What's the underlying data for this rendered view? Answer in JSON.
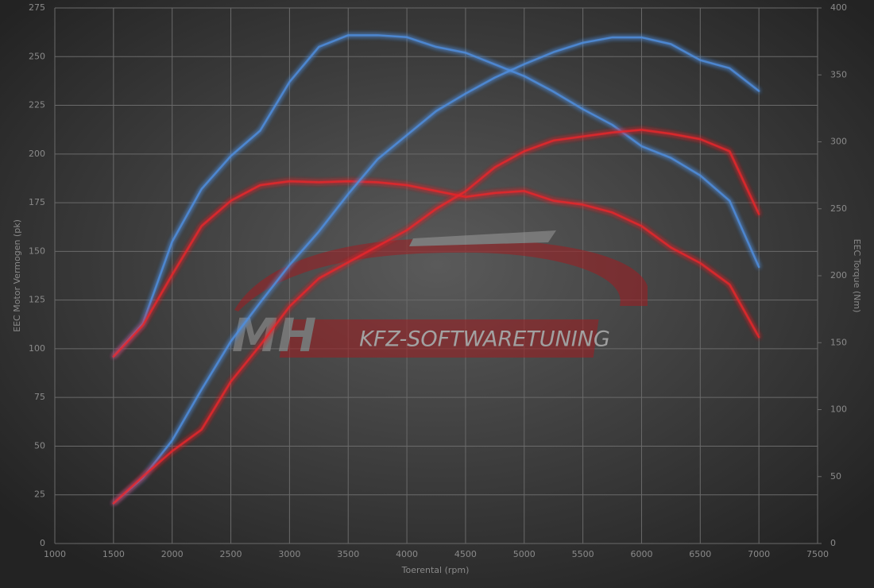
{
  "chart_data": {
    "type": "line",
    "x_label": "Toerental (rpm)",
    "y_label": "EEC Motor Vermogen (pk)",
    "y2_label": "EEC Torque (Nm)",
    "watermark": {
      "initials": "MH",
      "text": "KFZ-SOFTWARETUNING"
    },
    "x": [
      1500,
      1750,
      2000,
      2250,
      2500,
      2750,
      3000,
      3250,
      3500,
      3750,
      4000,
      4250,
      4500,
      4750,
      5000,
      5250,
      5500,
      5750,
      6000,
      6250,
      6500,
      6750,
      7000
    ],
    "xlim": [
      1000,
      7500
    ],
    "xticks": [
      1000,
      1500,
      2000,
      2500,
      3000,
      3500,
      4000,
      4500,
      5000,
      5500,
      6000,
      6500,
      7000,
      7500
    ],
    "ylim": [
      0,
      275
    ],
    "yticks": [
      0,
      25,
      50,
      75,
      100,
      125,
      150,
      175,
      200,
      225,
      250,
      275
    ],
    "y2lim": [
      0,
      400
    ],
    "y2ticks": [
      0,
      50,
      100,
      150,
      200,
      250,
      300,
      350,
      400
    ],
    "grid": true,
    "series": [
      {
        "color": "#4f8fe0",
        "values": [
          96,
          113,
          155,
          182,
          199,
          212,
          237,
          255,
          261,
          261,
          260,
          255,
          252,
          246,
          240,
          232,
          223,
          215,
          204,
          198,
          189,
          176,
          142
        ]
      },
      {
        "color": "#e8262b",
        "values": [
          96,
          112,
          138,
          163,
          176,
          184,
          186,
          185.5,
          186,
          185.5,
          184,
          181,
          178,
          180,
          181,
          176,
          174,
          170,
          163,
          152,
          144,
          133,
          106
        ]
      },
      {
        "color": "#4f8fe0",
        "axis": "y2",
        "values": [
          30,
          49,
          77,
          115,
          151,
          180,
          208,
          233,
          261,
          287,
          305,
          323,
          336,
          348,
          358,
          367,
          374,
          378,
          378,
          373,
          361,
          355,
          338
        ]
      },
      {
        "color": "#e8262b",
        "axis": "y2",
        "values": [
          30,
          50,
          69,
          85,
          121,
          148,
          177,
          198,
          210,
          222,
          234,
          250,
          263,
          281,
          293,
          301,
          304,
          307,
          309,
          306,
          302,
          293,
          246
        ]
      }
    ]
  }
}
